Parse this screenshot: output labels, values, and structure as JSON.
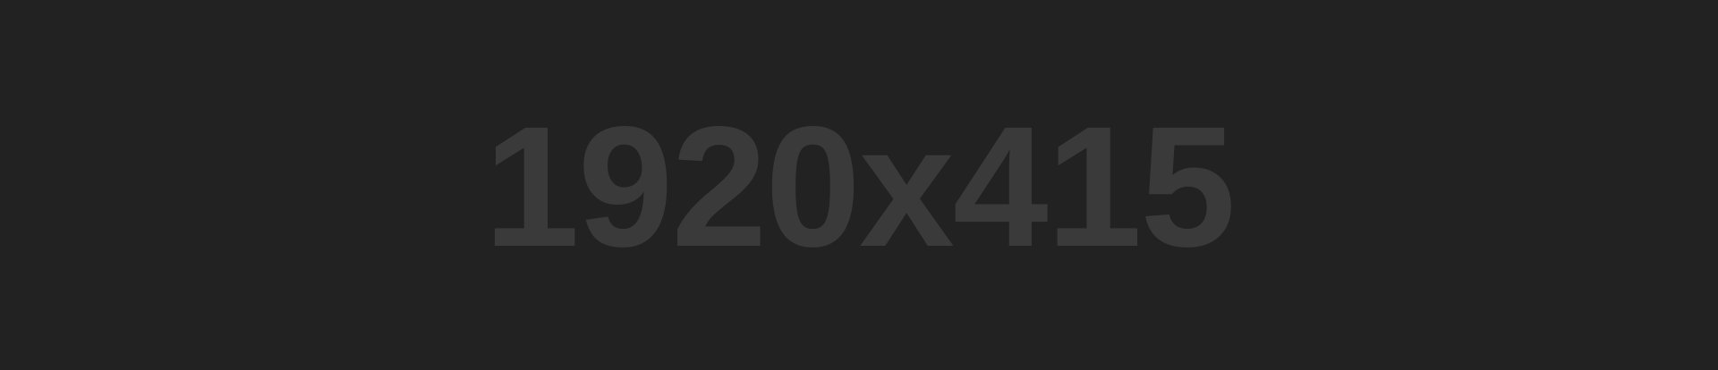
{
  "placeholder": {
    "label": "1920x415"
  },
  "colors": {
    "background": "#222222",
    "text": "#3a3a3a"
  }
}
